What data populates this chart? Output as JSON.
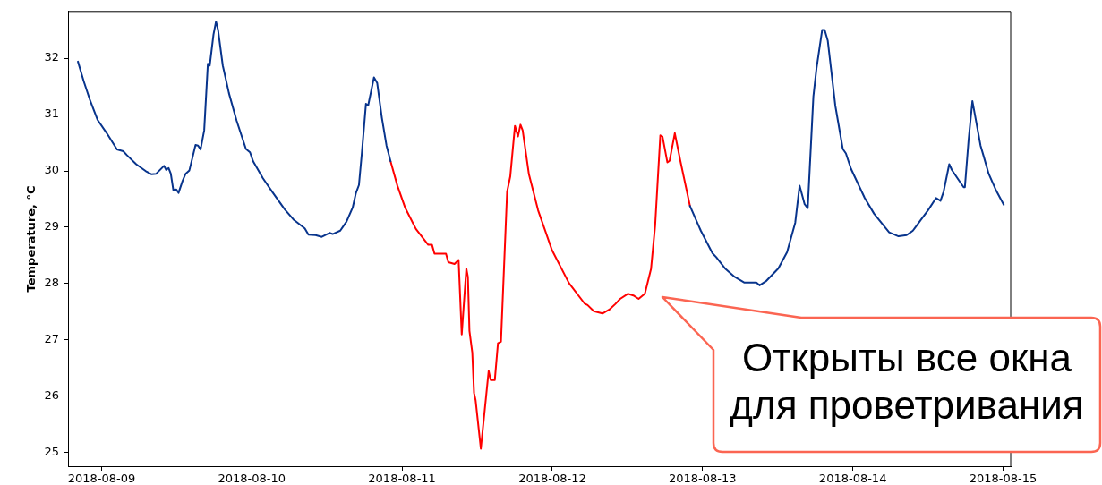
{
  "chart_data": {
    "type": "line",
    "ylabel": "Temperature, °C",
    "xlim": [
      "2018-08-08T18:39",
      "2018-08-15T01:13"
    ],
    "xticks": [
      "2018-08-09",
      "2018-08-10",
      "2018-08-11",
      "2018-08-12",
      "2018-08-13",
      "2018-08-14",
      "2018-08-15"
    ],
    "ylim": [
      24.76,
      32.83
    ],
    "yticks": [
      25,
      26,
      27,
      28,
      29,
      30,
      31,
      32
    ],
    "marker": "none",
    "line_style": "solid",
    "series": [
      {
        "color": "#08348c",
        "x": [
          "2018-08-08T20:14",
          "2018-08-08T21:08",
          "2018-08-08T22:07",
          "2018-08-08T23:21",
          "2018-08-09T00:50",
          "2018-08-09T02:28",
          "2018-08-09T03:28",
          "2018-08-09T04:03",
          "2018-08-09T05:32",
          "2018-08-09T07:01",
          "2018-08-09T08:00",
          "2018-08-09T08:44",
          "2018-08-09T09:59",
          "2018-08-09T10:19",
          "2018-08-09T10:43",
          "2018-08-09T11:04",
          "2018-08-09T11:28",
          "2018-08-09T11:57",
          "2018-08-09T12:18",
          "2018-08-09T12:56",
          "2018-08-09T13:26",
          "2018-08-09T14:02",
          "2018-08-09T15:01",
          "2018-08-09T15:25",
          "2018-08-09T15:49",
          "2018-08-09T16:24",
          "2018-08-09T16:59",
          "2018-08-09T17:17",
          "2018-08-09T17:53",
          "2018-08-09T18:17",
          "2018-08-09T18:37",
          "2018-08-09T19:22",
          "2018-08-09T20:21",
          "2018-08-09T21:35",
          "2018-08-09T23:04",
          "2018-08-09T23:43",
          "2018-08-10T00:13",
          "2018-08-10T01:47",
          "2018-08-10T03:16",
          "2018-08-10T05:15",
          "2018-08-10T06:44",
          "2018-08-10T08:28",
          "2018-08-10T09:03",
          "2018-08-10T10:11",
          "2018-08-10T11:11",
          "2018-08-10T12:25",
          "2018-08-10T12:55",
          "2018-08-10T14:08",
          "2018-08-10T15:08",
          "2018-08-10T16:07",
          "2018-08-10T16:37",
          "2018-08-10T17:07",
          "2018-08-10T17:36",
          "2018-08-10T18:14",
          "2018-08-10T18:35",
          "2018-08-10T19:31",
          "2018-08-10T20:02",
          "2018-08-10T20:47",
          "2018-08-10T21:31",
          "2018-08-10T22:10",
          "2018-08-11T22:00",
          "2018-08-12T21:59",
          "2018-08-12T23:43",
          "2018-08-13T01:35",
          "2018-08-13T02:11",
          "2018-08-13T03:40",
          "2018-08-13T05:08",
          "2018-08-13T06:38",
          "2018-08-13T08:36",
          "2018-08-13T09:06",
          "2018-08-13T10:06",
          "2018-08-13T12:06",
          "2018-08-13T13:30",
          "2018-08-13T14:48",
          "2018-08-13T15:30",
          "2018-08-13T16:18",
          "2018-08-13T16:48",
          "2018-08-13T17:42",
          "2018-08-13T18:12",
          "2018-08-13T19:06",
          "2018-08-13T19:30",
          "2018-08-13T20:00",
          "2018-08-13T21:12",
          "2018-08-13T22:24",
          "2018-08-13T22:54",
          "2018-08-13T23:42",
          "2018-08-14T01:54",
          "2018-08-14T03:24",
          "2018-08-14T05:48",
          "2018-08-14T07:18",
          "2018-08-14T08:36",
          "2018-08-14T09:36",
          "2018-08-14T10:48",
          "2018-08-14T12:00",
          "2018-08-14T13:18",
          "2018-08-14T14:00",
          "2018-08-14T14:30",
          "2018-08-14T15:24",
          "2018-08-14T15:48",
          "2018-08-14T16:36",
          "2018-08-14T17:42",
          "2018-08-14T17:54",
          "2018-08-14T18:30",
          "2018-08-14T19:06",
          "2018-08-14T20:24",
          "2018-08-14T20:54",
          "2018-08-14T21:42",
          "2018-08-14T22:54",
          "2018-08-15T00:06"
        ],
        "values": [
          31.94,
          31.6,
          31.27,
          30.91,
          30.67,
          30.38,
          30.35,
          30.28,
          30.12,
          30.0,
          29.94,
          29.95,
          30.09,
          30.02,
          30.05,
          29.95,
          29.66,
          29.67,
          29.61,
          29.82,
          29.95,
          30.01,
          30.46,
          30.45,
          30.38,
          30.72,
          31.9,
          31.87,
          32.42,
          32.65,
          32.5,
          31.87,
          31.38,
          30.89,
          30.39,
          30.33,
          30.17,
          29.87,
          29.63,
          29.32,
          29.13,
          28.98,
          28.87,
          28.86,
          28.83,
          28.9,
          28.88,
          28.94,
          29.1,
          29.35,
          29.6,
          29.75,
          30.34,
          31.19,
          31.16,
          31.66,
          31.56,
          30.94,
          30.45,
          30.17,
          null,
          29.38,
          28.94,
          28.54,
          28.47,
          28.26,
          28.12,
          28.02,
          28.02,
          27.97,
          28.04,
          28.27,
          28.56,
          29.08,
          29.74,
          29.41,
          29.34,
          31.32,
          31.82,
          32.5,
          32.5,
          32.31,
          31.16,
          30.39,
          30.31,
          30.04,
          29.52,
          29.24,
          28.91,
          28.84,
          28.86,
          28.94,
          29.12,
          29.3,
          29.52,
          29.47,
          29.63,
          30.12,
          30.02,
          29.89,
          29.71,
          29.71,
          30.56,
          31.24,
          30.45,
          30.26,
          29.95,
          29.65,
          29.4
        ]
      },
      {
        "color": "#ff0000",
        "x": [
          "2018-08-10T22:10",
          "2018-08-10T23:15",
          "2018-08-11T00:29",
          "2018-08-11T02:13",
          "2018-08-11T04:11",
          "2018-08-11T04:47",
          "2018-08-11T05:11",
          "2018-08-11T07:01",
          "2018-08-11T07:24",
          "2018-08-11T08:23",
          "2018-08-11T09:02",
          "2018-08-11T09:32",
          "2018-08-11T10:16",
          "2018-08-11T10:31",
          "2018-08-11T10:46",
          "2018-08-11T11:13",
          "2018-08-11T11:30",
          "2018-08-11T11:45",
          "2018-08-11T12:35",
          "2018-08-11T13:50",
          "2018-08-11T14:10",
          "2018-08-11T14:49",
          "2018-08-11T15:19",
          "2018-08-11T15:48",
          "2018-08-11T16:47",
          "2018-08-11T17:17",
          "2018-08-11T18:02",
          "2018-08-11T18:31",
          "2018-08-11T18:55",
          "2018-08-11T19:16",
          "2018-08-11T20:15",
          "2018-08-11T21:44",
          "2018-08-11T23:58",
          "2018-08-12T02:40",
          "2018-08-12T05:08",
          "2018-08-12T05:38",
          "2018-08-12T06:38",
          "2018-08-12T08:01",
          "2018-08-12T09:06",
          "2018-08-12T10:05",
          "2018-08-12T10:50",
          "2018-08-12T12:04",
          "2018-08-12T12:57",
          "2018-08-12T13:47",
          "2018-08-12T14:47",
          "2018-08-12T15:46",
          "2018-08-12T16:25",
          "2018-08-12T17:15",
          "2018-08-12T17:36",
          "2018-08-12T18:23",
          "2018-08-12T18:44",
          "2018-08-12T19:34",
          "2018-08-12T20:28",
          "2018-08-12T21:59"
        ],
        "values": [
          30.17,
          29.74,
          29.35,
          28.97,
          28.69,
          28.69,
          28.53,
          28.53,
          28.38,
          28.35,
          28.42,
          27.1,
          28.27,
          28.12,
          27.16,
          26.78,
          26.06,
          25.93,
          25.07,
          26.45,
          26.29,
          26.29,
          26.94,
          26.97,
          29.63,
          29.9,
          30.8,
          30.61,
          30.82,
          30.72,
          29.95,
          29.3,
          28.59,
          28.01,
          27.65,
          27.62,
          27.51,
          27.47,
          27.54,
          27.64,
          27.73,
          27.82,
          27.79,
          27.73,
          27.82,
          28.26,
          29.02,
          30.63,
          30.61,
          30.15,
          30.18,
          30.67,
          30.17,
          29.38
        ]
      }
    ],
    "annotations": [
      "Открыты все окна для проветривания"
    ]
  }
}
